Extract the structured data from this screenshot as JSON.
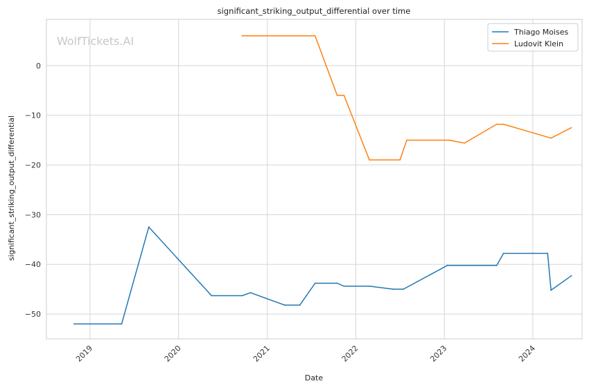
{
  "chart_data": {
    "type": "line",
    "title": "significant_striking_output_differential over time",
    "xlabel": "Date",
    "ylabel": "significant_striking_output_differential",
    "watermark": "WolfTickets.AI",
    "xlim": [
      "2018-07-05",
      "2024-07-22"
    ],
    "ylim": [
      -55,
      9.3
    ],
    "x_ticks": [
      {
        "date": "2019-01-01",
        "label": "2019"
      },
      {
        "date": "2020-01-01",
        "label": "2020"
      },
      {
        "date": "2021-01-01",
        "label": "2021"
      },
      {
        "date": "2022-01-01",
        "label": "2022"
      },
      {
        "date": "2023-01-01",
        "label": "2023"
      },
      {
        "date": "2024-01-01",
        "label": "2024"
      }
    ],
    "y_ticks": [
      {
        "value": 0,
        "label": "0"
      },
      {
        "value": -10,
        "label": "−10"
      },
      {
        "value": -20,
        "label": "−20"
      },
      {
        "value": -30,
        "label": "−30"
      },
      {
        "value": -40,
        "label": "−40"
      },
      {
        "value": -50,
        "label": "−50"
      }
    ],
    "grid": true,
    "legend_position": "top-right",
    "series": [
      {
        "name": "Thiago Moises",
        "color": "#1f77b4",
        "points": [
          [
            "2018-10-27",
            -52.0
          ],
          [
            "2019-05-11",
            -52.0
          ],
          [
            "2019-08-31",
            -32.5
          ],
          [
            "2020-05-16",
            -46.3
          ],
          [
            "2020-09-19",
            -46.3
          ],
          [
            "2020-10-24",
            -45.7
          ],
          [
            "2021-03-13",
            -48.2
          ],
          [
            "2021-05-15",
            -48.2
          ],
          [
            "2021-07-17",
            -43.8
          ],
          [
            "2021-10-16",
            -43.8
          ],
          [
            "2021-11-13",
            -44.4
          ],
          [
            "2022-02-26",
            -44.4
          ],
          [
            "2022-06-04",
            -45.0
          ],
          [
            "2022-07-16",
            -45.0
          ],
          [
            "2023-01-14",
            -40.2
          ],
          [
            "2023-08-05",
            -40.2
          ],
          [
            "2023-09-02",
            -37.8
          ],
          [
            "2024-03-02",
            -37.8
          ],
          [
            "2024-03-16",
            -45.2
          ],
          [
            "2024-06-08",
            -42.3
          ]
        ]
      },
      {
        "name": "Ludovit Klein",
        "color": "#ff7f0e",
        "points": [
          [
            "2020-09-19",
            6.0
          ],
          [
            "2021-07-17",
            6.0
          ],
          [
            "2021-10-16",
            -6.0
          ],
          [
            "2021-11-13",
            -6.0
          ],
          [
            "2022-02-26",
            -19.0
          ],
          [
            "2022-07-02",
            -19.0
          ],
          [
            "2022-07-30",
            -15.0
          ],
          [
            "2023-01-21",
            -15.0
          ],
          [
            "2023-03-25",
            -15.6
          ],
          [
            "2023-08-05",
            -11.8
          ],
          [
            "2023-09-02",
            -11.8
          ],
          [
            "2024-03-16",
            -14.6
          ],
          [
            "2024-06-08",
            -12.5
          ]
        ]
      }
    ]
  }
}
